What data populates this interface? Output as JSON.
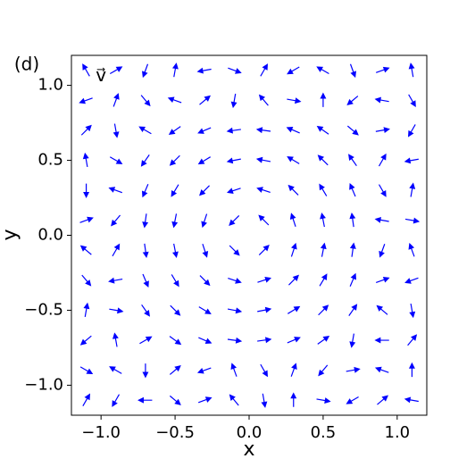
{
  "chart_data": {
    "type": "quiver",
    "panel_label": "(d)",
    "annotation": "v⃗",
    "xlabel": "x",
    "ylabel": "y",
    "color": "#0000ff",
    "xlim": [
      -1.2,
      1.2
    ],
    "ylim": [
      -1.2,
      1.2
    ],
    "xticks": [
      {
        "value": -1,
        "label": "−1.0"
      },
      {
        "value": -0.5,
        "label": "−0.5"
      },
      {
        "value": 0,
        "label": "0.0"
      },
      0.5,
      {
        "value": 1,
        "label": "1.0"
      }
    ],
    "yticks": [
      {
        "value": -1,
        "label": "−1.0"
      },
      {
        "value": -0.5,
        "label": "−0.5"
      },
      {
        "value": 0,
        "label": "0.0"
      },
      0.5,
      {
        "value": 1,
        "label": "1.0"
      }
    ],
    "x": [
      -1.1,
      -0.9,
      -0.7,
      -0.5,
      -0.3,
      -0.1,
      0.1,
      0.3,
      0.5,
      0.7,
      0.9,
      1.1
    ],
    "y": [
      1.1,
      0.9,
      0.7,
      0.5,
      0.3,
      0.1,
      -0.1,
      -0.3,
      -0.5,
      -0.7,
      -0.9,
      -1.1
    ],
    "angles": [
      [
        120,
        30,
        250,
        80,
        190,
        340,
        60,
        210,
        150,
        290,
        20,
        100
      ],
      [
        200,
        70,
        310,
        160,
        40,
        260,
        130,
        350,
        90,
        220,
        170,
        300
      ],
      [
        45,
        280,
        150,
        215,
        203,
        188,
        172,
        157,
        145,
        320,
        10,
        240
      ],
      [
        100,
        330,
        235,
        225,
        211,
        191,
        169,
        149,
        135,
        125,
        60,
        190
      ],
      [
        270,
        160,
        247,
        239,
        225,
        198,
        162,
        135,
        121,
        113,
        300,
        80
      ],
      [
        20,
        230,
        262,
        259,
        252,
        225,
        135,
        108,
        101,
        98,
        170,
        350
      ],
      [
        140,
        60,
        278,
        281,
        288,
        315,
        45,
        72,
        79,
        82,
        250,
        110
      ],
      [
        310,
        190,
        293,
        301,
        315,
        342,
        18,
        45,
        59,
        67,
        20,
        200
      ],
      [
        80,
        350,
        305,
        315,
        329,
        349,
        11,
        31,
        45,
        55,
        140,
        280
      ],
      [
        220,
        100,
        30,
        324,
        337,
        352,
        8,
        23,
        35,
        260,
        180,
        50
      ],
      [
        330,
        150,
        270,
        40,
        200,
        110,
        300,
        70,
        230,
        10,
        160,
        90
      ],
      [
        60,
        240,
        180,
        320,
        20,
        130,
        280,
        90,
        350,
        210,
        40,
        170
      ]
    ]
  }
}
